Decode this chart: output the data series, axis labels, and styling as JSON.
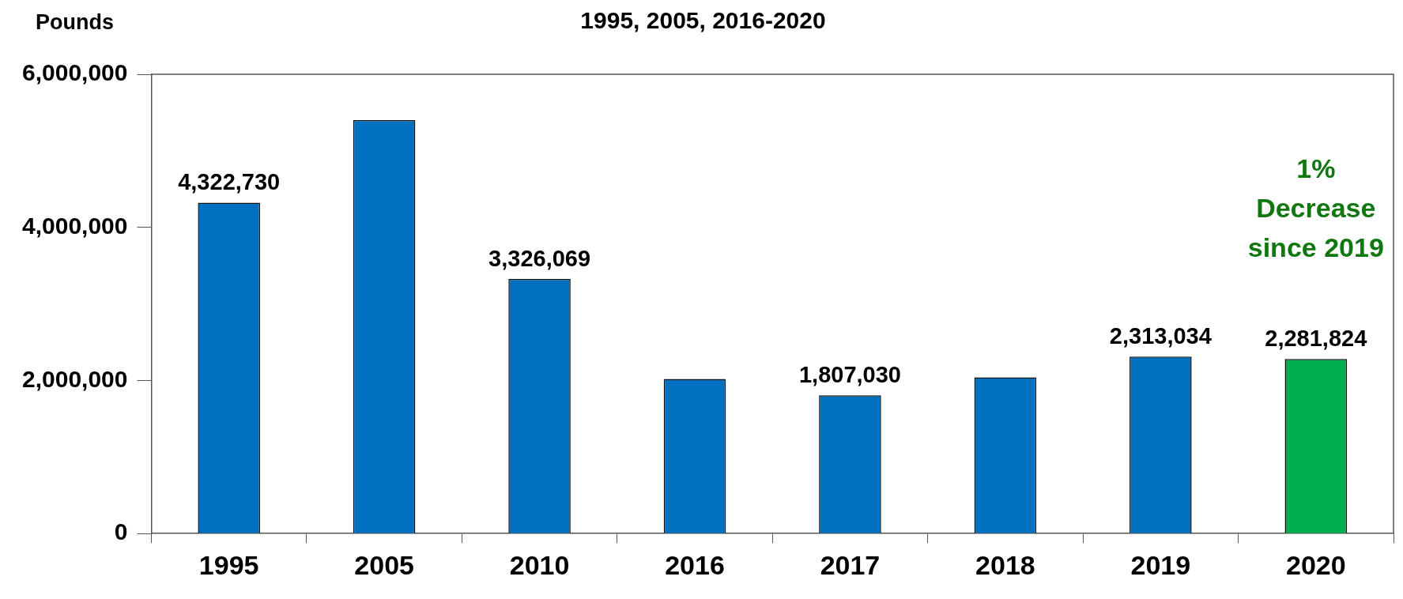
{
  "chart_data": {
    "type": "bar",
    "title": "1995, 2005, 2016-2020",
    "ylabel": "Pounds",
    "categories": [
      "1995",
      "2005",
      "2010",
      "2016",
      "2017",
      "2018",
      "2019",
      "2020"
    ],
    "values": [
      4322730,
      5400000,
      3326069,
      2020000,
      1807030,
      2040000,
      2313034,
      2281824
    ],
    "colors": [
      "#0070c0",
      "#0070c0",
      "#0070c0",
      "#0070c0",
      "#0070c0",
      "#0070c0",
      "#0070c0",
      "#00b050"
    ],
    "value_labels": [
      "4,322,730",
      null,
      "3,326,069",
      null,
      "1,807,030",
      null,
      "2,313,034",
      "2,281,824"
    ],
    "ylim": [
      0,
      6000000
    ],
    "yticks": [
      0,
      {
        "value": 2000000,
        "label": "2,000,000"
      },
      {
        "value": 4000000,
        "label": "4,000,000"
      },
      {
        "value": 6000000,
        "label": "6,000,000"
      }
    ],
    "grid": false,
    "legend": false,
    "annotations": [
      "1%\nDecrease\nsince 2019"
    ]
  }
}
